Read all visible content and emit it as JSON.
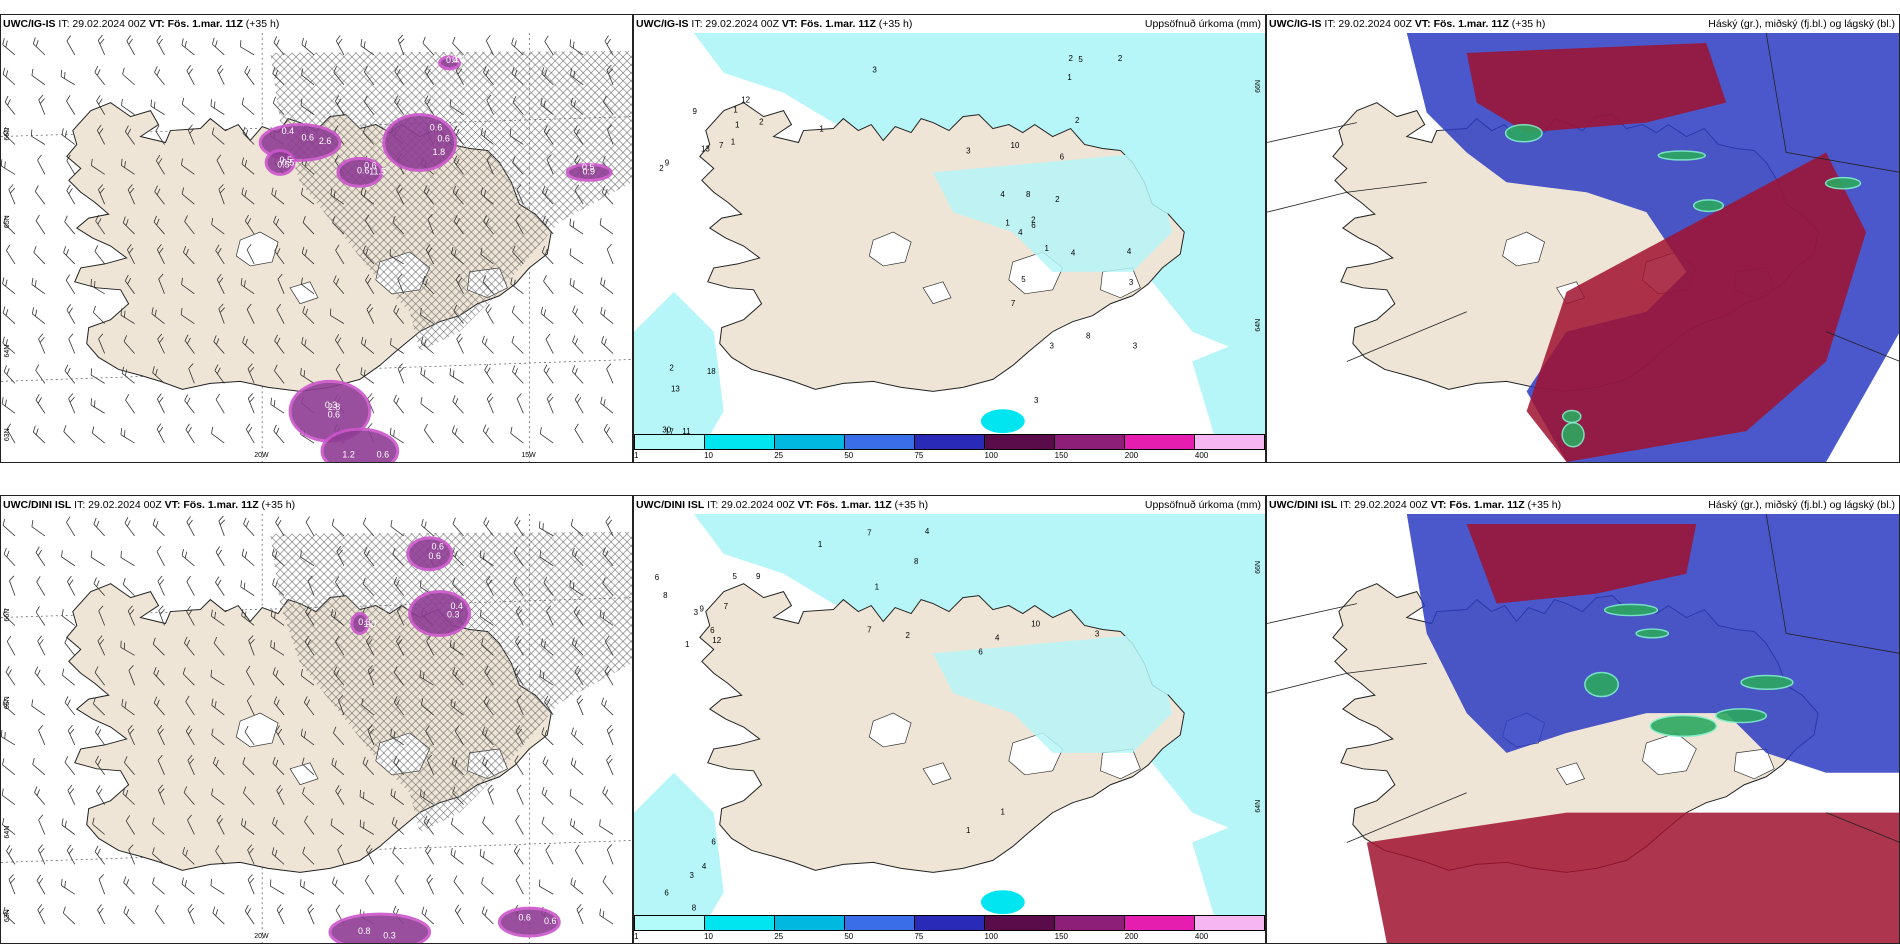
{
  "rows": [
    {
      "panels": [
        {
          "id": "r1-wind",
          "model": "UWC/IG-IS",
          "it": "IT: 29.02.2024 00Z",
          "vt_label": "VT:",
          "vt": "Fös. 1.mar. 11Z",
          "lead": "(+35 h)",
          "right_title": "",
          "type": "wind-precip",
          "lat_labels": [
            "66N",
            "65N",
            "64N",
            "63N"
          ],
          "lon_labels": [
            "20W",
            "15W"
          ],
          "values": [
            "0.6",
            "0.6",
            "0.6",
            "0.5",
            "0.3",
            "0.6",
            "0.5",
            "0.4",
            "0.4",
            "0.6",
            "0.6",
            "0.5",
            "0.6",
            "1.2",
            "0.9",
            "0.6",
            "2.6",
            "1.8",
            "11.5",
            "0.5",
            "2.8"
          ]
        },
        {
          "id": "r1-precip",
          "model": "UWC/IG-IS",
          "it": "IT: 29.02.2024 00Z",
          "vt_label": "VT:",
          "vt": "Fös. 1.mar. 11Z",
          "lead": "(+35 h)",
          "right_title": "Uppsöfnuð úrkoma (mm)",
          "type": "precip",
          "lat_labels": [
            "66N",
            "64N"
          ],
          "values": [
            "5",
            "3",
            "2",
            "2",
            "1",
            "3",
            "2",
            "6",
            "10",
            "1",
            "7",
            "1",
            "9",
            "13",
            "2",
            "2",
            "1",
            "1",
            "9",
            "12",
            "13",
            "2",
            "18",
            "30",
            "17",
            "11",
            "4",
            "3",
            "3",
            "4",
            "2",
            "5",
            "8",
            "7",
            "4",
            "3",
            "2",
            "3",
            "4",
            "6",
            "8",
            "1",
            "1"
          ]
        },
        {
          "id": "r1-cloud",
          "model": "UWC/IG-IS",
          "it": "IT: 29.02.2024 00Z",
          "vt_label": "VT:",
          "vt": "Fös. 1.mar. 11Z",
          "lead": "(+35 h)",
          "right_title": "Háský (gr.), miðský (fj.bl.) og lágský (bl.)",
          "type": "cloud"
        }
      ]
    },
    {
      "panels": [
        {
          "id": "r2-wind",
          "model": "UWC/DINI ISL",
          "it": "IT: 29.02.2024 00Z",
          "vt_label": "VT:",
          "vt": "Fös. 1.mar. 11Z",
          "lead": "(+35 h)",
          "right_title": "",
          "type": "wind-precip",
          "lat_labels": [
            "66N",
            "65N",
            "64N",
            "63N"
          ],
          "lon_labels": [
            "20W"
          ],
          "values": [
            "0.6",
            "0.3",
            "0.3",
            "0.8",
            "0.6",
            "0.6",
            "0.4",
            "1.0",
            "0.3",
            "0.6"
          ]
        },
        {
          "id": "r2-precip",
          "model": "UWC/DINI ISL",
          "it": "IT: 29.02.2024 00Z",
          "vt_label": "VT:",
          "vt": "Fös. 1.mar. 11Z",
          "lead": "(+35 h)",
          "right_title": "Uppsöfnuð úrkoma (mm)",
          "type": "precip",
          "lat_labels": [
            "66N",
            "64N"
          ],
          "values": [
            "2",
            "4",
            "7",
            "10",
            "7",
            "1",
            "1",
            "3",
            "4",
            "8",
            "9",
            "12",
            "9",
            "6",
            "5",
            "7",
            "8",
            "1",
            "3",
            "6",
            "8",
            "6",
            "3",
            "3",
            "4",
            "6",
            "1",
            "1",
            "6"
          ]
        },
        {
          "id": "r2-cloud",
          "model": "UWC/DINI ISL",
          "it": "IT: 29.02.2024 00Z",
          "vt_label": "VT:",
          "vt": "Fös. 1.mar. 11Z",
          "lead": "(+35 h)",
          "right_title": "Háský (gr.), miðský (fj.bl.) og lágský (bl.)",
          "type": "cloud"
        }
      ]
    }
  ],
  "colorbar": {
    "colors": [
      "#b3fafa",
      "#00e5f0",
      "#00b8e0",
      "#3a6ee8",
      "#2a2ab8",
      "#5a0b4a",
      "#8e1f78",
      "#e61eb0",
      "#f5b6f2"
    ],
    "ticks": [
      "1",
      "10",
      "25",
      "50",
      "75",
      "100",
      "150",
      "200",
      "400"
    ]
  },
  "colors": {
    "land": "#efe5d6",
    "sea_precip": "#b6f6f8",
    "precip_purple": "#8e3d93",
    "precip_pink": "#cc55cc",
    "cloud_high": "#2b3bc2",
    "cloud_mid": "#a0122f",
    "cloud_low": "#2ca860"
  }
}
